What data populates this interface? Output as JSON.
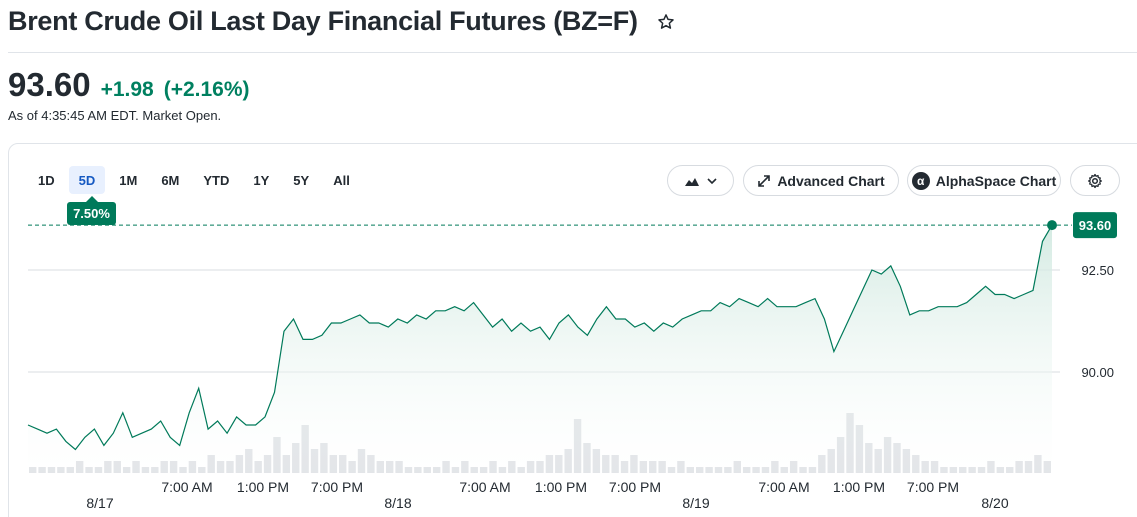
{
  "header": {
    "title": "Brent Crude Oil Last Day Financial Futures (BZ=F)",
    "price": "93.60",
    "change": "+1.98",
    "change_pct": "(+2.16%)",
    "as_of": "As of 4:35:45 AM EDT. Market Open."
  },
  "toolbar": {
    "ranges": [
      "1D",
      "5D",
      "1M",
      "6M",
      "YTD",
      "1Y",
      "5Y",
      "All"
    ],
    "active_range": "5D",
    "range_change_badge": "7.50%",
    "advanced_chart_label": "Advanced Chart",
    "alphaspace_chart_label": "AlphaSpace Chart"
  },
  "colors": {
    "positive": "#008060",
    "line": "#007a5a",
    "fill": "#e6f3ee",
    "volume": "#dcdfe3",
    "text": "#232a31"
  },
  "chart_data": {
    "type": "area",
    "y_axis": {
      "ticks": [
        90.0,
        92.5
      ],
      "tick_labels": [
        "90.00",
        "92.50"
      ],
      "range": [
        87.5,
        94.4
      ]
    },
    "last_price": 93.6,
    "last_price_label": "93.60",
    "x_axis": {
      "time_labels": [
        "7:00 AM",
        "1:00 PM",
        "7:00 PM",
        "7:00 AM",
        "1:00 PM",
        "7:00 PM",
        "7:00 AM",
        "1:00 PM",
        "7:00 PM"
      ],
      "date_labels": [
        "8/17",
        "8/18",
        "8/19",
        "8/20"
      ]
    },
    "series": [
      {
        "values": [
          88.7,
          88.6,
          88.5,
          88.6,
          88.3,
          88.1,
          88.4,
          88.6,
          88.2,
          88.5,
          89.0,
          88.4,
          88.5,
          88.6,
          88.8,
          88.4,
          88.2,
          89.0,
          89.6,
          88.6,
          88.8,
          88.5,
          88.9,
          88.7,
          88.7,
          88.9,
          89.5,
          91.0,
          91.3,
          90.8,
          90.8,
          90.9,
          91.2,
          91.2,
          91.3,
          91.4,
          91.2,
          91.2,
          91.1,
          91.3,
          91.2,
          91.4,
          91.3,
          91.5,
          91.5,
          91.6,
          91.5,
          91.7,
          91.4,
          91.1,
          91.3,
          91.0,
          91.2,
          91.0,
          91.1,
          90.8,
          91.2,
          91.4,
          91.1,
          90.9,
          91.3,
          91.6,
          91.3,
          91.3,
          91.1,
          91.2,
          91.0,
          91.2,
          91.1,
          91.3,
          91.4,
          91.5,
          91.5,
          91.7,
          91.6,
          91.8,
          91.7,
          91.6,
          91.8,
          91.6,
          91.6,
          91.6,
          91.7,
          91.8,
          91.3,
          90.5,
          91.0,
          91.5,
          92.0,
          92.5,
          92.4,
          92.6,
          92.1,
          91.4,
          91.5,
          91.5,
          91.6,
          91.6,
          91.6,
          91.7,
          91.9,
          92.1,
          91.9,
          91.9,
          91.8,
          91.9,
          92.0,
          93.2,
          93.6
        ]
      }
    ],
    "volume": [
      1,
      1,
      1,
      1,
      1,
      2,
      1,
      1,
      2,
      2,
      1,
      2,
      1,
      1,
      2,
      2,
      1,
      2,
      1,
      3,
      2,
      2,
      3,
      4,
      2,
      3,
      6,
      3,
      5,
      8,
      4,
      5,
      3,
      3,
      2,
      4,
      3,
      2,
      2,
      2,
      1,
      1,
      1,
      1,
      2,
      1,
      2,
      1,
      1,
      2,
      1,
      2,
      1,
      2,
      2,
      3,
      3,
      4,
      9,
      5,
      4,
      3,
      3,
      2,
      3,
      2,
      2,
      2,
      1,
      2,
      1,
      1,
      1,
      1,
      1,
      2,
      1,
      1,
      1,
      2,
      1,
      2,
      1,
      1,
      3,
      4,
      6,
      10,
      8,
      5,
      4,
      6,
      5,
      4,
      3,
      2,
      2,
      1,
      1,
      1,
      1,
      1,
      2,
      1,
      1,
      2,
      2,
      3,
      2
    ]
  }
}
